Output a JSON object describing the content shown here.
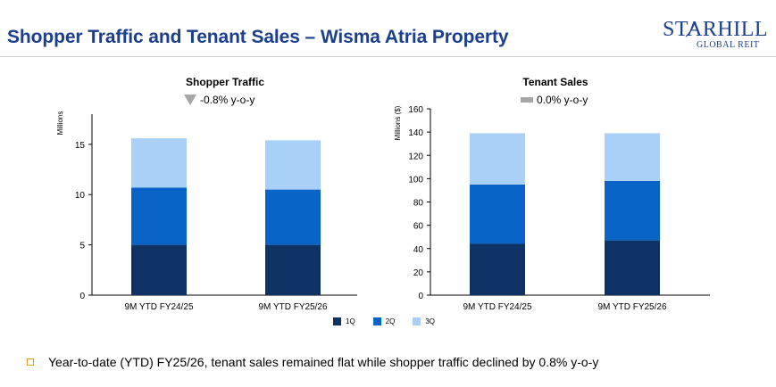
{
  "header": {
    "title": "Shopper Traffic and Tenant Sales – Wisma Atria Property",
    "logo_name": "STARHILL",
    "logo_sub": "GLOBAL REIT"
  },
  "colors": {
    "title": "#1b3f8f",
    "q1": "#0d3263",
    "q2": "#0a63c6",
    "q3": "#a9d1f7",
    "down_triangle": "#a6a6a6",
    "flat_bar": "#a6a6a6",
    "axis": "#000000",
    "bullet": "#e0a020"
  },
  "left_chart": {
    "title": "Shopper Traffic",
    "change_text": "-0.8% y-o-y",
    "change_icon": "down-triangle-icon"
  },
  "right_chart": {
    "title": "Tenant Sales",
    "change_text": "0.0% y-o-y",
    "change_icon": "flat-bar-icon"
  },
  "legend": [
    "1Q",
    "2Q",
    "3Q"
  ],
  "note": "Year-to-date (YTD) FY25/26, tenant sales remained flat while shopper traffic declined by 0.8% y-o-y",
  "chart_data": [
    {
      "type": "bar",
      "stacked": true,
      "title": "Shopper Traffic",
      "ylabel": "Millions",
      "ylim": [
        0,
        18
      ],
      "yticks": [
        0,
        5,
        10,
        15
      ],
      "categories": [
        "9M YTD FY24/25",
        "9M YTD FY25/26"
      ],
      "series": [
        {
          "name": "1Q",
          "values": [
            5.0,
            5.0
          ]
        },
        {
          "name": "2Q",
          "values": [
            5.7,
            5.5
          ]
        },
        {
          "name": "3Q",
          "values": [
            4.9,
            4.9
          ]
        }
      ]
    },
    {
      "type": "bar",
      "stacked": true,
      "title": "Tenant Sales",
      "ylabel": "Millions ($)",
      "ylim": [
        0,
        160
      ],
      "yticks": [
        0,
        20,
        40,
        60,
        80,
        100,
        120,
        140,
        160
      ],
      "categories": [
        "9M YTD FY24/25",
        "9M YTD FY25/26"
      ],
      "series": [
        {
          "name": "1Q",
          "values": [
            44,
            47
          ]
        },
        {
          "name": "2Q",
          "values": [
            51,
            51
          ]
        },
        {
          "name": "3Q",
          "values": [
            44,
            41
          ]
        }
      ]
    }
  ]
}
